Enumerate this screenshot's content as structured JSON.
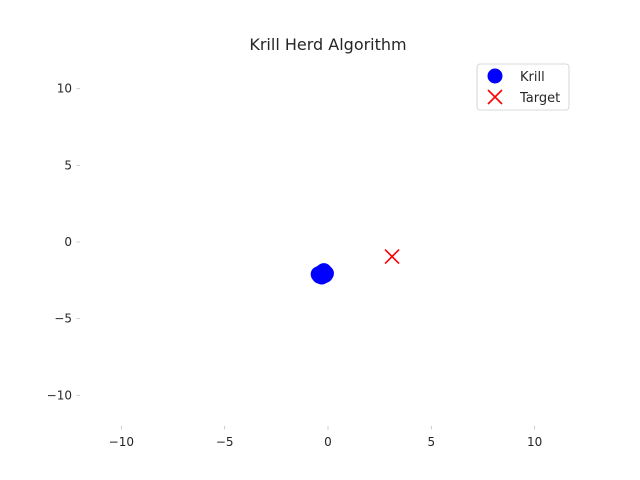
{
  "chart_data": {
    "type": "scatter",
    "title": "Krill Herd Algorithm",
    "xlabel": "",
    "ylabel": "",
    "xlim": [
      -12,
      12
    ],
    "ylim": [
      -12,
      12
    ],
    "x_ticks": [
      -10,
      -5,
      0,
      5,
      10
    ],
    "y_ticks": [
      -10,
      -5,
      0,
      5,
      10
    ],
    "x_tick_labels": [
      "−10",
      "−5",
      "0",
      "5",
      "10"
    ],
    "y_tick_labels": [
      "−10",
      "−5",
      "0",
      "5",
      "10"
    ],
    "grid": false,
    "legend_position": "top-right",
    "series": [
      {
        "name": "Krill",
        "marker": "circle",
        "color": "#0000ff",
        "points": [
          [
            -0.3,
            -2.1
          ],
          [
            -0.2,
            -2.0
          ],
          [
            -0.4,
            -2.2
          ],
          [
            -0.25,
            -1.95
          ],
          [
            -0.35,
            -2.05
          ],
          [
            -0.15,
            -2.15
          ],
          [
            -0.3,
            -2.25
          ],
          [
            -0.2,
            -1.9
          ],
          [
            -0.45,
            -2.1
          ],
          [
            -0.1,
            -2.05
          ]
        ]
      },
      {
        "name": "Target",
        "marker": "x",
        "color": "#ff0000",
        "points": [
          [
            3.1,
            -0.95
          ]
        ]
      }
    ]
  }
}
